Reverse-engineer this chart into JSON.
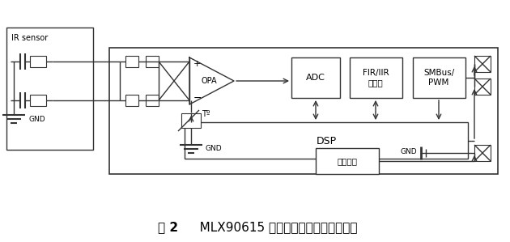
{
  "fig_bg": "#ffffff",
  "lc": "#333333",
  "caption": "图 2    MLX90615 红外传感测温模块内部结构",
  "caption_bold": "图 2",
  "ir_label": "IR sensor",
  "gnd_label": "GND",
  "To_label": "Tº",
  "adc_label": "ADC",
  "fir_label": "FIR/IIR\n滤波器",
  "smbus_label": "SMBus/\nPWM",
  "dsp_label": "DSP",
  "vref_label": "参考电压",
  "opa_label": "OPA",
  "plus_label": "+",
  "minus_label": "−"
}
